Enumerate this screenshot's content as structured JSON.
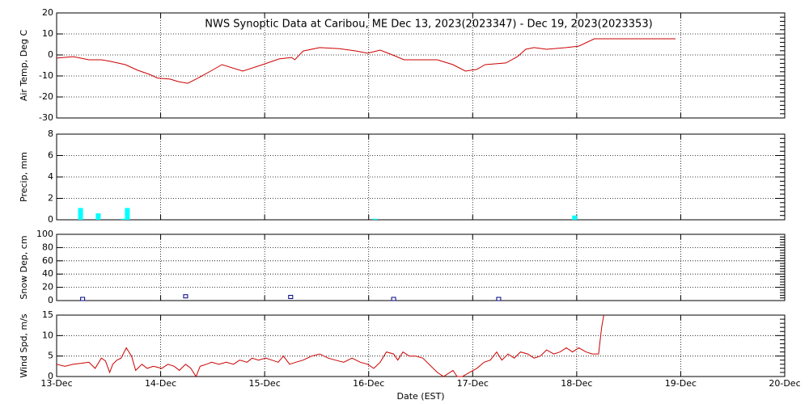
{
  "chart_data": [
    {
      "type": "line",
      "title": "NWS Synoptic Data at Caribou, ME   Dec 13, 2023(2023347) - Dec 19, 2023(2023353)",
      "ylabel": "Air Temp, Deg C",
      "color": "#cc0000",
      "grid": true,
      "xlim": [
        0,
        7
      ],
      "ylim": [
        -30,
        20
      ],
      "yticks": [
        -30,
        -20,
        -10,
        0,
        10,
        20
      ],
      "x": [
        0,
        0.16,
        0.31,
        0.43,
        0.51,
        0.66,
        0.78,
        0.89,
        0.97,
        1.09,
        1.17,
        1.26,
        1.36,
        1.48,
        1.59,
        1.79,
        1.98,
        2.14,
        2.26,
        2.29,
        2.37,
        2.53,
        2.72,
        2.88,
        2.99,
        3.11,
        3.23,
        3.34,
        3.5,
        3.66,
        3.81,
        3.93,
        4.04,
        4.12,
        4.32,
        4.43,
        4.51,
        4.59,
        4.71,
        4.9,
        5.02,
        5.17,
        5.95
      ],
      "values": [
        -1.5,
        -0.8,
        -2.3,
        -2.3,
        -3,
        -4.6,
        -7.3,
        -9.2,
        -11,
        -11.5,
        -12.7,
        -13.5,
        -11,
        -7.7,
        -4.6,
        -7.7,
        -4.6,
        -1.9,
        -1.2,
        -2.3,
        1.9,
        3.5,
        3,
        1.9,
        0.8,
        2.3,
        0,
        -2.3,
        -2.3,
        -2.3,
        -4.6,
        -7.7,
        -6.9,
        -4.6,
        -3.8,
        -0.8,
        2.7,
        3.5,
        2.7,
        3.5,
        4.2,
        7.7,
        7.7
      ]
    },
    {
      "type": "bar",
      "ylabel": "Precip, mm",
      "color": "#00ffff",
      "grid": true,
      "xlim": [
        0,
        7
      ],
      "ylim": [
        0,
        8
      ],
      "yticks": [
        0,
        2,
        4,
        6,
        8
      ],
      "x": [
        0.23,
        0.4,
        0.64,
        0.68,
        3.06,
        4.98
      ],
      "values": [
        1.1,
        0.6,
        0.1,
        1.1,
        0.1,
        0.4
      ]
    },
    {
      "type": "scatter",
      "ylabel": "Snow Dep, cm",
      "color": "#000080",
      "grid": true,
      "xlim": [
        0,
        7
      ],
      "ylim": [
        0,
        100
      ],
      "yticks": [
        0,
        20,
        40,
        60,
        80,
        100
      ],
      "x": [
        0.25,
        1.24,
        2.25,
        3.24,
        4.25
      ],
      "values": [
        0,
        4,
        3,
        0,
        0
      ]
    },
    {
      "type": "line",
      "ylabel": "Wind Spd, m/s",
      "xlabel": "Date (EST)",
      "color": "#cc0000",
      "grid": true,
      "xlim": [
        0,
        7
      ],
      "ylim": [
        0,
        15
      ],
      "yticks": [
        0,
        5,
        10,
        15
      ],
      "xticks": [
        {
          "value": 0,
          "label": "13-Dec"
        },
        {
          "value": 1,
          "label": "14-Dec"
        },
        {
          "value": 2,
          "label": "15-Dec"
        },
        {
          "value": 3,
          "label": "16-Dec"
        },
        {
          "value": 4,
          "label": "17-Dec"
        },
        {
          "value": 5,
          "label": "18-Dec"
        },
        {
          "value": 6,
          "label": "19-Dec"
        },
        {
          "value": 7,
          "label": "20-Dec"
        }
      ],
      "x": [
        0,
        0.08,
        0.16,
        0.23,
        0.31,
        0.37,
        0.43,
        0.47,
        0.51,
        0.54,
        0.58,
        0.62,
        0.67,
        0.72,
        0.76,
        0.82,
        0.87,
        0.93,
        1.01,
        1.07,
        1.13,
        1.18,
        1.24,
        1.29,
        1.34,
        1.38,
        1.44,
        1.49,
        1.56,
        1.63,
        1.7,
        1.76,
        1.83,
        1.88,
        1.94,
        2.01,
        2.07,
        2.13,
        2.18,
        2.24,
        2.3,
        2.37,
        2.45,
        2.53,
        2.61,
        2.68,
        2.76,
        2.84,
        2.92,
        2.99,
        3.05,
        3.11,
        3.17,
        3.24,
        3.28,
        3.33,
        3.39,
        3.45,
        3.52,
        3.58,
        3.66,
        3.72,
        3.81,
        3.85,
        3.9,
        3.97,
        4.04,
        4.11,
        4.17,
        4.23,
        4.28,
        4.34,
        4.4,
        4.46,
        4.53,
        4.59,
        4.65,
        4.71,
        4.78,
        4.84,
        4.9,
        4.96,
        5.02,
        5.09,
        5.15,
        5.21,
        5.24,
        5.26
      ],
      "values": [
        3,
        2.5,
        3,
        3.2,
        3.5,
        2,
        4.5,
        3.8,
        1,
        3,
        4,
        4.5,
        7,
        5,
        1.5,
        3,
        2,
        2.5,
        2,
        3,
        2.5,
        1.5,
        3,
        2,
        0,
        2.5,
        3,
        3.5,
        3,
        3.5,
        3,
        4,
        3.5,
        4.5,
        4,
        4.5,
        4,
        3.5,
        5,
        3,
        3.5,
        4,
        5,
        5.5,
        4.5,
        4,
        3.5,
        4.5,
        3.5,
        3,
        2,
        3.5,
        6,
        5.5,
        4,
        6,
        5,
        5,
        4.5,
        3,
        1,
        0,
        1.5,
        0,
        0,
        1,
        2,
        3.5,
        4,
        6,
        4,
        5.5,
        4.5,
        6,
        5.5,
        4.5,
        5,
        6.5,
        5.5,
        6,
        7,
        6,
        7,
        6,
        5.5,
        5.5,
        12,
        15
      ]
    }
  ]
}
